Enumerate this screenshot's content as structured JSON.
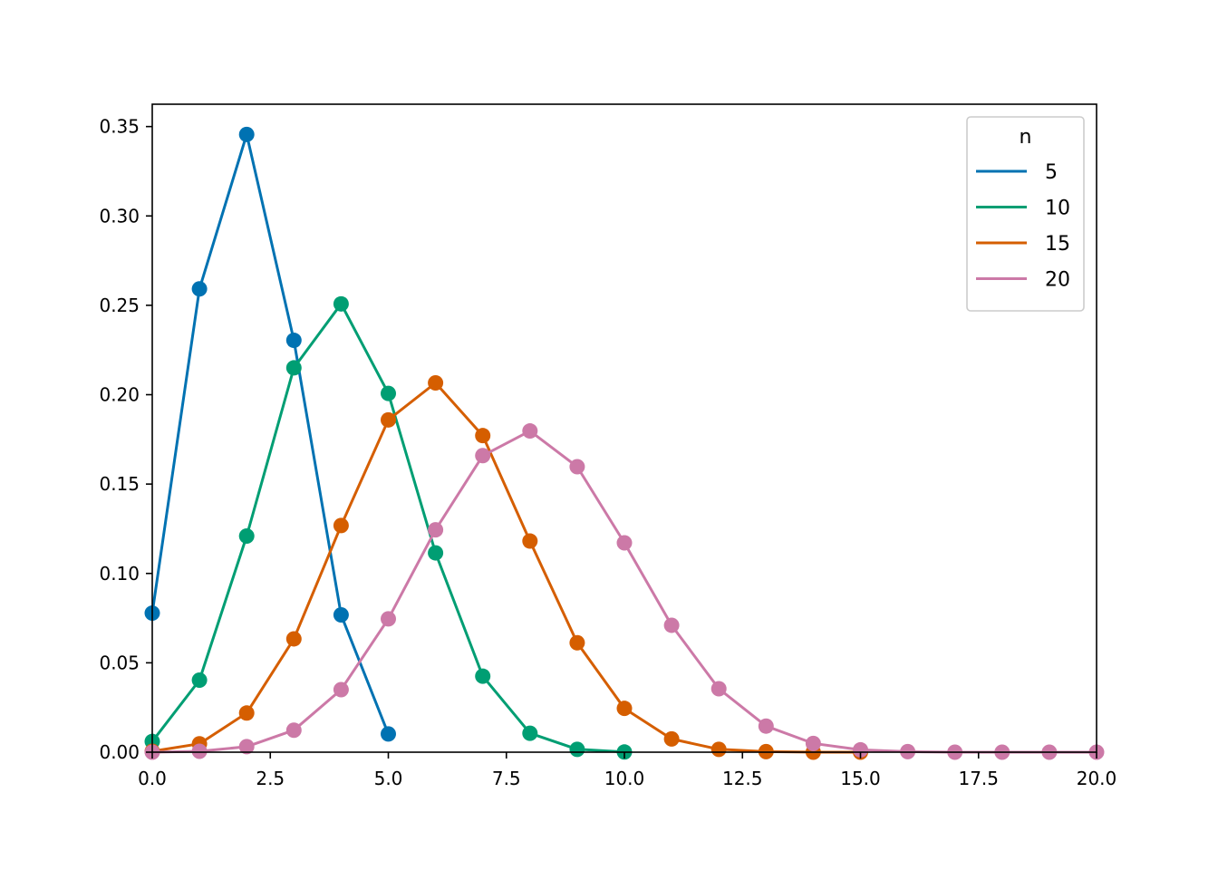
{
  "chart_data": {
    "type": "line",
    "title": "",
    "xlabel": "",
    "ylabel": "",
    "xlim": [
      0,
      20
    ],
    "ylim": [
      0,
      0.3625
    ],
    "xticks": [
      "0.0",
      "2.5",
      "5.0",
      "7.5",
      "10.0",
      "12.5",
      "15.0",
      "17.5",
      "20.0"
    ],
    "yticks": [
      "0.00",
      "0.05",
      "0.10",
      "0.15",
      "0.20",
      "0.25",
      "0.30",
      "0.35"
    ],
    "legend": {
      "title": "n",
      "placement": "top-right"
    },
    "grid": false,
    "markers": true,
    "series": [
      {
        "name": "5",
        "color": "#0072B2",
        "x": [
          0,
          1,
          2,
          3,
          4,
          5
        ],
        "y": [
          0.0778,
          0.2592,
          0.3456,
          0.2304,
          0.0768,
          0.0102
        ]
      },
      {
        "name": "10",
        "color": "#009E73",
        "x": [
          0,
          1,
          2,
          3,
          4,
          5,
          6,
          7,
          8,
          9,
          10
        ],
        "y": [
          0.006,
          0.0403,
          0.1209,
          0.215,
          0.2508,
          0.2007,
          0.1115,
          0.0425,
          0.0106,
          0.0016,
          0.0001
        ]
      },
      {
        "name": "15",
        "color": "#D55E00",
        "x": [
          0,
          1,
          2,
          3,
          4,
          5,
          6,
          7,
          8,
          9,
          10,
          11,
          12,
          13,
          14,
          15
        ],
        "y": [
          0.0005,
          0.0047,
          0.0219,
          0.0634,
          0.1268,
          0.1859,
          0.2066,
          0.1771,
          0.1181,
          0.0612,
          0.0245,
          0.0074,
          0.0016,
          0.0003,
          0.0,
          0.0
        ]
      },
      {
        "name": "20",
        "color": "#CC79A7",
        "x": [
          0,
          1,
          2,
          3,
          4,
          5,
          6,
          7,
          8,
          9,
          10,
          11,
          12,
          13,
          14,
          15,
          16,
          17,
          18,
          19,
          20
        ],
        "y": [
          0.0,
          0.0005,
          0.0031,
          0.0123,
          0.035,
          0.0746,
          0.1244,
          0.1659,
          0.1797,
          0.1597,
          0.1171,
          0.071,
          0.0355,
          0.0146,
          0.0049,
          0.0013,
          0.0003,
          0.0,
          0.0,
          0.0,
          0.0
        ]
      }
    ]
  }
}
